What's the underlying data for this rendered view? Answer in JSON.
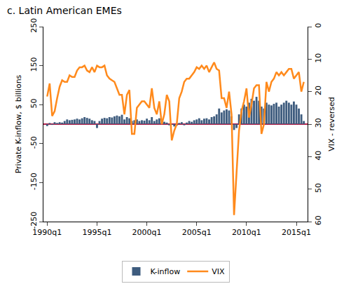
{
  "chart_data": {
    "type": "bar",
    "title": "c. Latin American EMEs",
    "y_label": "Private K-inflow, $ billions",
    "y2_label": "VIX - reversed",
    "categories": [
      "1990q1",
      null,
      null,
      null,
      null,
      null,
      null,
      null,
      null,
      null,
      null,
      null,
      null,
      null,
      null,
      null,
      null,
      null,
      null,
      null,
      "1995q1",
      null,
      null,
      null,
      null,
      null,
      null,
      null,
      null,
      null,
      null,
      null,
      null,
      null,
      null,
      null,
      null,
      null,
      null,
      null,
      "2000q1",
      null,
      null,
      null,
      null,
      null,
      null,
      null,
      null,
      null,
      null,
      null,
      null,
      null,
      null,
      null,
      null,
      null,
      null,
      null,
      "2005q1",
      null,
      null,
      null,
      null,
      null,
      null,
      null,
      null,
      null,
      null,
      null,
      null,
      null,
      null,
      null,
      null,
      null,
      null,
      null,
      "2010q1",
      null,
      null,
      null,
      null,
      null,
      null,
      null,
      null,
      null,
      null,
      null,
      null,
      null,
      null,
      null,
      null,
      null,
      null,
      null,
      "2015q1",
      null,
      null,
      null
    ],
    "series": [
      {
        "name": "K-inflow",
        "type": "bar",
        "color": "#3e5c7e",
        "axis": "y",
        "values": [
          -5,
          3,
          -2,
          5,
          3,
          5,
          4,
          8,
          12,
          10,
          11,
          12,
          14,
          12,
          15,
          18,
          16,
          14,
          10,
          8,
          -10,
          8,
          14,
          16,
          15,
          18,
          17,
          20,
          22,
          20,
          24,
          12,
          18,
          15,
          8,
          10,
          12,
          8,
          10,
          9,
          14,
          10,
          18,
          8,
          12,
          15,
          5,
          6,
          4,
          -3,
          -2,
          -6,
          -4,
          3,
          5,
          -3,
          4,
          8,
          6,
          10,
          12,
          15,
          10,
          14,
          15,
          12,
          18,
          20,
          25,
          40,
          30,
          35,
          38,
          35,
          20,
          -15,
          -10,
          25,
          40,
          50,
          45,
          55,
          65,
          60,
          70,
          60,
          45,
          40,
          55,
          50,
          48,
          52,
          55,
          45,
          50,
          55,
          60,
          55,
          50,
          58,
          50,
          40,
          25,
          8
        ]
      },
      {
        "name": "VIX",
        "type": "line",
        "color": "#ff8a1c",
        "axis": "y2",
        "values": [
          21.5,
          17.5,
          27.5,
          26,
          22,
          18.5,
          16.5,
          17,
          17,
          15,
          15.5,
          15.5,
          13.5,
          12.5,
          12.5,
          12,
          13.5,
          14,
          12.5,
          14,
          12,
          12.5,
          12.5,
          12,
          15,
          16,
          16.5,
          17,
          19,
          21,
          21,
          27,
          21,
          19.5,
          33,
          33,
          25,
          24,
          23,
          23,
          24,
          25,
          19,
          25,
          27,
          23,
          30,
          27,
          21,
          23,
          35,
          32,
          30,
          22,
          20,
          17,
          16,
          16,
          15,
          14,
          12.5,
          13,
          12,
          13,
          12,
          14,
          12.5,
          11,
          13,
          13.5,
          22,
          22,
          25,
          20,
          27,
          58,
          45,
          32,
          26,
          23,
          19,
          28,
          24,
          19,
          18,
          18,
          33,
          30,
          17,
          20,
          17,
          16,
          14,
          15,
          14,
          15,
          14,
          13,
          13,
          16,
          15,
          14,
          20,
          17
        ]
      }
    ],
    "ylim": [
      -250,
      250
    ],
    "yticks": [
      -250,
      -150,
      -50,
      50,
      150,
      250
    ],
    "y2lim": [
      60,
      0
    ],
    "y2ticks": [
      0,
      10,
      20,
      30,
      40,
      50,
      60
    ],
    "grid": false,
    "legend": "bottom"
  }
}
